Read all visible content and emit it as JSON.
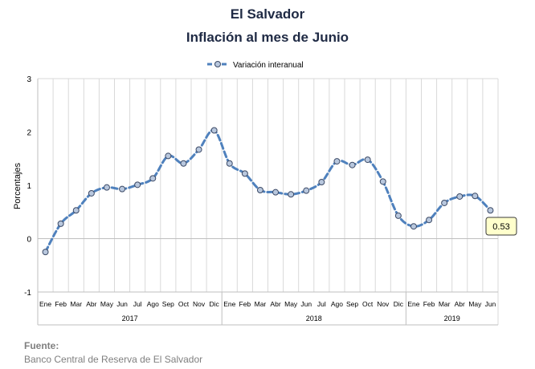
{
  "title": "El Salvador",
  "subtitle": "Inflación al mes de Junio",
  "source": {
    "label": "Fuente:",
    "text": "Banco Central de Reserva de El Salvador"
  },
  "chart_data": {
    "type": "line",
    "title": "El Salvador",
    "subtitle": "Inflación al mes de Junio",
    "ylabel": "Porcentajes",
    "xlabel": "",
    "ylim": [
      -1,
      3
    ],
    "yticks": [
      -1,
      0,
      1,
      2,
      3
    ],
    "grid": {
      "vertical": true,
      "horizontal": false
    },
    "legend": "top-center",
    "months": [
      "Ene",
      "Feb",
      "Mar",
      "Abr",
      "May",
      "Jun",
      "Jul",
      "Ago",
      "Sep",
      "Oct",
      "Nov",
      "Dic",
      "Ene",
      "Feb",
      "Mar",
      "Abr",
      "May",
      "Jun",
      "Jul",
      "Ago",
      "Sep",
      "Oct",
      "Nov",
      "Dic",
      "Ene",
      "Feb",
      "Mar",
      "Abr",
      "May",
      "Jun"
    ],
    "years": [
      {
        "label": "2017",
        "months": 12
      },
      {
        "label": "2018",
        "months": 12
      },
      {
        "label": "2019",
        "months": 6
      }
    ],
    "series": [
      {
        "name": "Variación interanual",
        "color": "#4f81bd",
        "values": [
          -0.25,
          0.28,
          0.53,
          0.85,
          0.96,
          0.93,
          1.01,
          1.13,
          1.55,
          1.41,
          1.67,
          2.03,
          1.41,
          1.22,
          0.91,
          0.87,
          0.83,
          0.9,
          1.06,
          1.45,
          1.38,
          1.48,
          1.07,
          0.43,
          0.23,
          0.35,
          0.67,
          0.79,
          0.8,
          0.53
        ]
      }
    ],
    "annotation": {
      "label": "0.53",
      "index": 29
    }
  }
}
